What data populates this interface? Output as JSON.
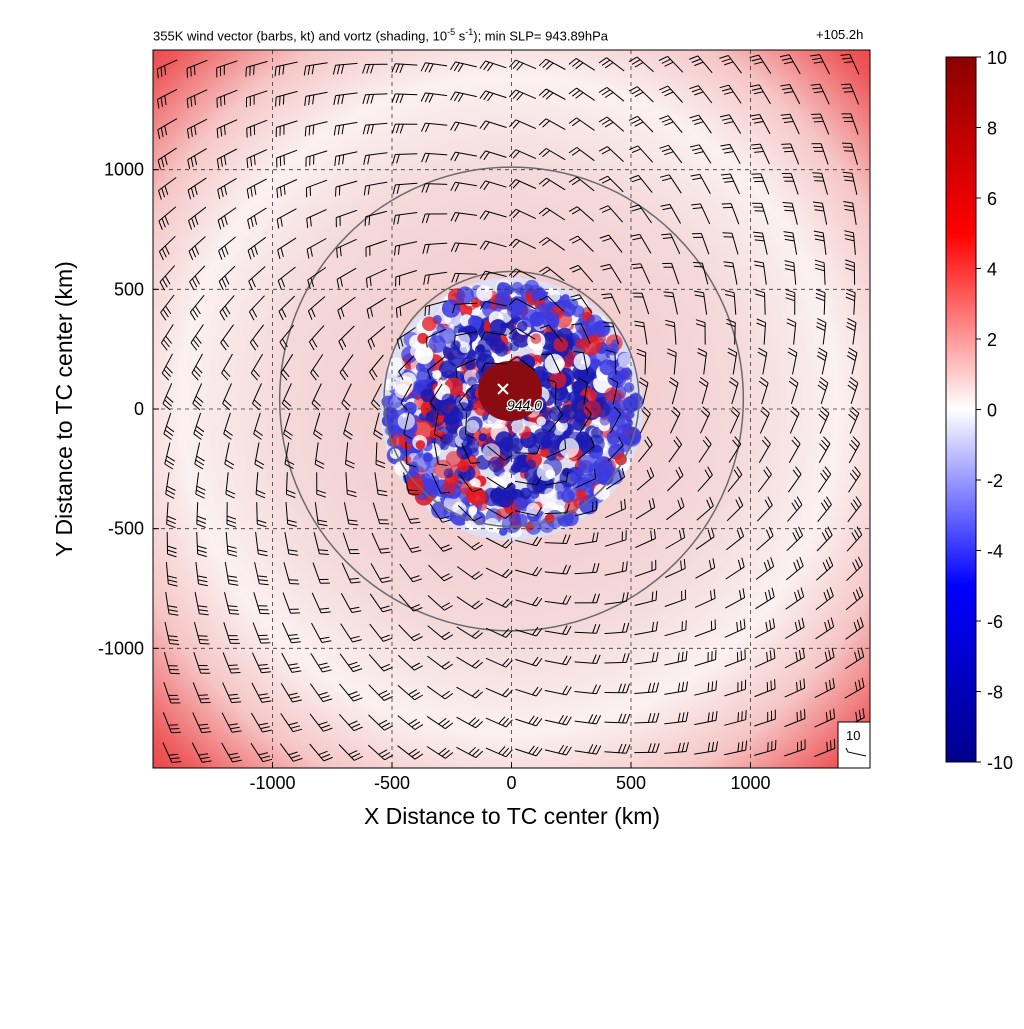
{
  "chart_data": {
    "type": "heatmap",
    "title": "355K wind vector (barbs, kt) and vortz (shading, 10",
    "title_exp1": "-5",
    "title_mid": " s",
    "title_exp2": "-1",
    "title_end": "); min SLP= 943.89hPa",
    "time_label": "+105.2h",
    "xlabel": "X Distance to TC center (km)",
    "ylabel": "Y Distance to TC center (km)",
    "xlim": [
      -1500,
      1500
    ],
    "ylim": [
      -1500,
      1500
    ],
    "x_ticks": [
      -1000,
      -500,
      0,
      500,
      1000
    ],
    "y_ticks": [
      -1000,
      -500,
      0,
      500,
      1000
    ],
    "x_tick_labels": [
      "-1000",
      "-500",
      "0",
      "500",
      "1000"
    ],
    "y_tick_labels": [
      "-1000",
      "-500",
      "0",
      "500",
      "1000"
    ],
    "grid": "dashed",
    "range_rings_km": [
      550,
      1000
    ],
    "center_mark": {
      "x": 0,
      "y": 0,
      "label": "944.0"
    },
    "colorbar": {
      "min": -10,
      "max": 10,
      "ticks": [
        -10,
        -8,
        -6,
        -4,
        -2,
        0,
        2,
        4,
        6,
        8,
        10
      ],
      "tick_labels": [
        "-10",
        "-8",
        "-6",
        "-4",
        "-2",
        "0",
        "2",
        "4",
        "6",
        "8",
        "10"
      ],
      "colormap": [
        "#00008b",
        "#0000ff",
        "#ffffff",
        "#ff0000",
        "#8b0000"
      ]
    },
    "vorticity_features": {
      "core_max": 10,
      "inner_ring_radius_km": [
        0,
        550
      ],
      "inner_ring_value_range": [
        -10,
        10
      ],
      "mid_annulus_value": 1,
      "outer_band_value": 7
    },
    "wind_barbs": {
      "units": "kt",
      "grid_spacing_km": 125,
      "flow": "cyclonic"
    },
    "reference_vector": {
      "label": "10",
      "speed_kt": 10
    }
  },
  "colors": {
    "positive": "#e8141b",
    "negative": "#1e1ec8",
    "neutral": "#ffffff",
    "ring": "#6b6b6b",
    "grid": "#333333"
  }
}
